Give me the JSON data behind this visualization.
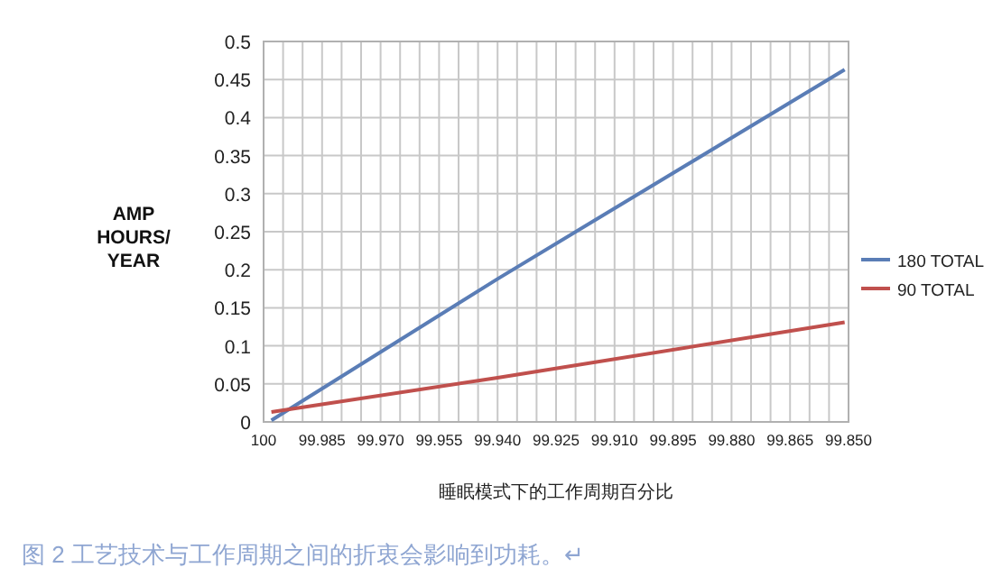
{
  "chart_data": {
    "type": "line",
    "xlabel": "睡眠模式下的工作周期百分比",
    "ylabel": "AMP HOURS/ YEAR",
    "annotations": [
      "图 2 工艺技术与工作周期之间的折衷会影响到功耗。↵"
    ],
    "series": [
      {
        "name": "180 TOTAL",
        "color": "#5a7db6",
        "x": [
          99.998,
          99.94,
          99.851
        ],
        "values": [
          0.002,
          0.188,
          0.463
        ]
      },
      {
        "name": "90 TOTAL",
        "color": "#c0504d",
        "x": [
          99.998,
          99.94,
          99.851
        ],
        "values": [
          0.013,
          0.058,
          0.131
        ]
      }
    ],
    "xlim": [
      100,
      99.85
    ],
    "xticks": [
      {
        "value": 100,
        "label": "100"
      },
      {
        "value": 99.995,
        "label": null
      },
      {
        "value": 99.99,
        "label": null
      },
      {
        "value": 99.985,
        "label": "99.985"
      },
      {
        "value": 99.98,
        "label": null
      },
      {
        "value": 99.975,
        "label": null
      },
      {
        "value": 99.97,
        "label": "99.970"
      },
      {
        "value": 99.965,
        "label": null
      },
      {
        "value": 99.96,
        "label": null
      },
      {
        "value": 99.955,
        "label": "99.955"
      },
      {
        "value": 99.95,
        "label": null
      },
      {
        "value": 99.945,
        "label": null
      },
      {
        "value": 99.94,
        "label": "99.940"
      },
      {
        "value": 99.935,
        "label": null
      },
      {
        "value": 99.93,
        "label": null
      },
      {
        "value": 99.925,
        "label": "99.925"
      },
      {
        "value": 99.92,
        "label": null
      },
      {
        "value": 99.915,
        "label": null
      },
      {
        "value": 99.91,
        "label": "99.910"
      },
      {
        "value": 99.905,
        "label": null
      },
      {
        "value": 99.9,
        "label": null
      },
      {
        "value": 99.895,
        "label": "99.895"
      },
      {
        "value": 99.89,
        "label": null
      },
      {
        "value": 99.885,
        "label": null
      },
      {
        "value": 99.88,
        "label": "99.880"
      },
      {
        "value": 99.875,
        "label": null
      },
      {
        "value": 99.87,
        "label": null
      },
      {
        "value": 99.865,
        "label": "99.865"
      },
      {
        "value": 99.86,
        "label": null
      },
      {
        "value": 99.855,
        "label": null
      },
      {
        "value": 99.85,
        "label": "99.850"
      }
    ],
    "ylim": [
      0,
      0.5
    ],
    "yticks": [
      0,
      0.05,
      0.1,
      0.15,
      0.2,
      0.25,
      0.3,
      0.35,
      0.4,
      0.45,
      0.5
    ],
    "grid": true,
    "legend": "right",
    "marker": "none",
    "line_style": "solid"
  }
}
